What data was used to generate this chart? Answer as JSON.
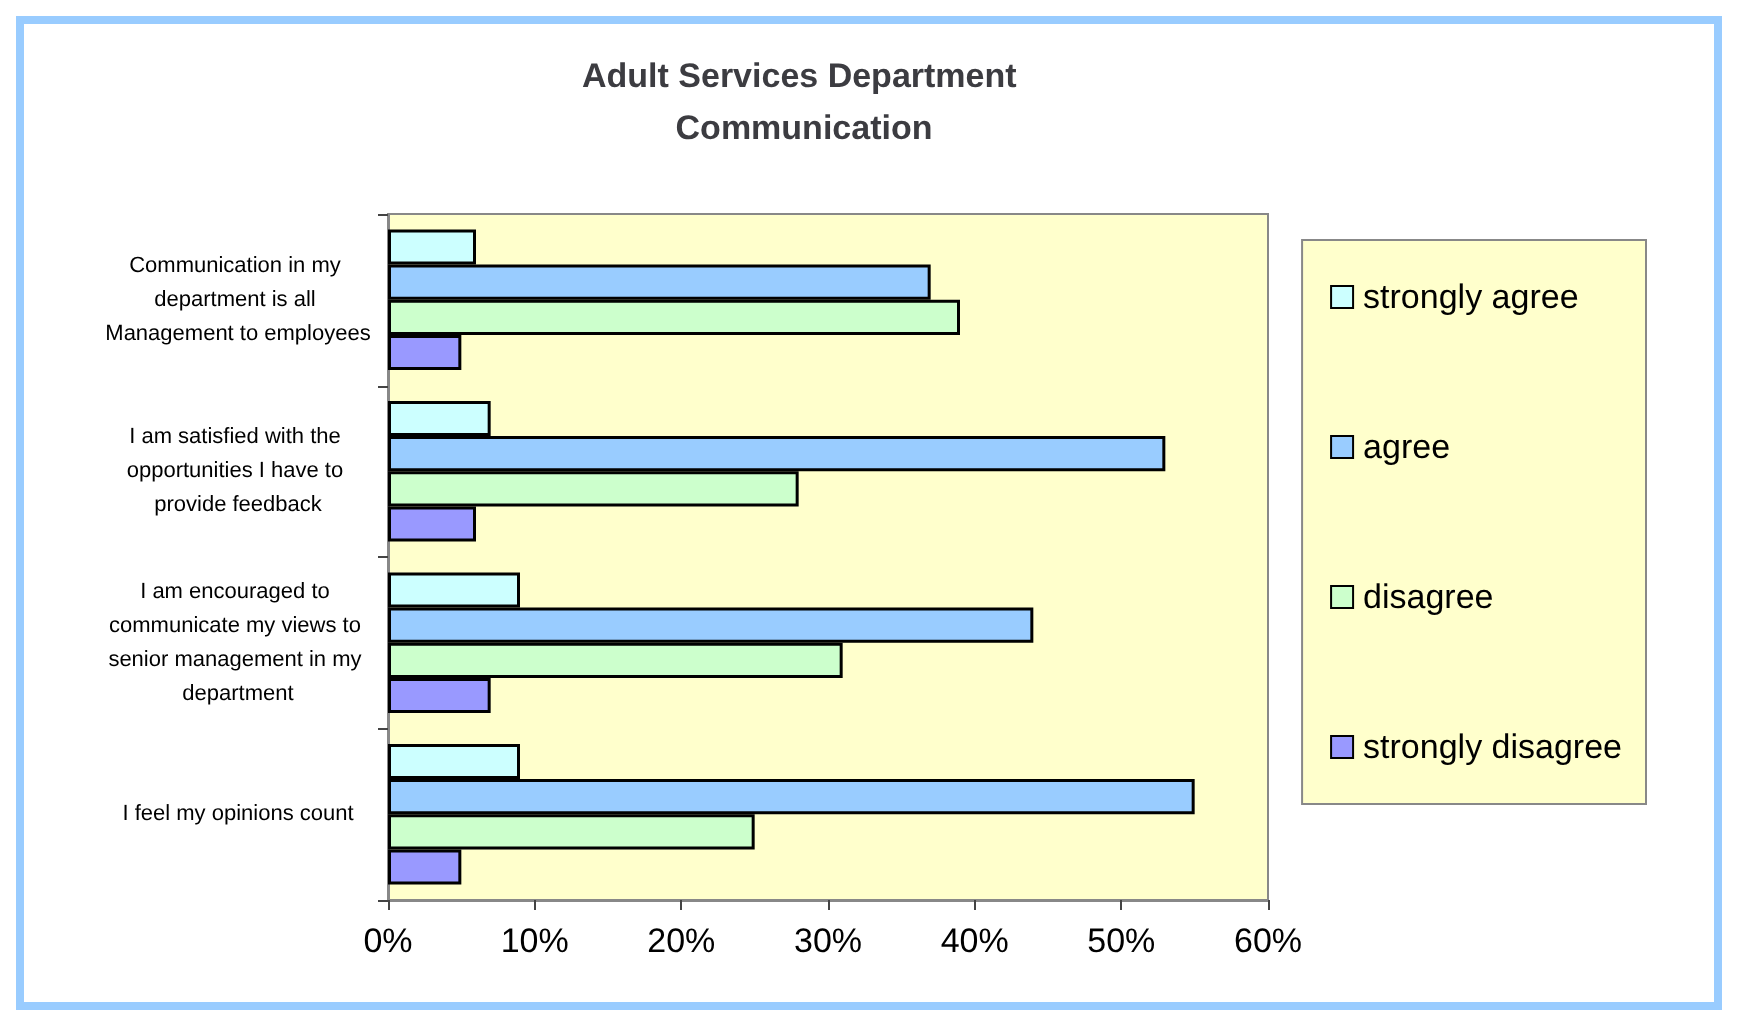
{
  "chart_data": {
    "type": "bar",
    "orientation": "horizontal",
    "title": "Adult Services Department Communication",
    "categories": [
      "Communication in my department is all Management to employees",
      "I am satisfied with the opportunities I have to provide feedback",
      "I am encouraged to communicate my views to senior management in my department",
      "I feel my opinions count"
    ],
    "series": [
      {
        "name": "strongly agree",
        "color": "#ccffff",
        "values": [
          6,
          7,
          9,
          9
        ]
      },
      {
        "name": "agree",
        "color": "#99ccff",
        "values": [
          37,
          53,
          44,
          55
        ]
      },
      {
        "name": "disagree",
        "color": "#ccffcc",
        "values": [
          39,
          28,
          31,
          25
        ]
      },
      {
        "name": "strongly disagree",
        "color": "#9999ff",
        "values": [
          5,
          6,
          7,
          5
        ]
      }
    ],
    "xlim": [
      0,
      60
    ],
    "xticks": [
      {
        "value": 0,
        "label": "0%"
      },
      {
        "value": 10,
        "label": "10%"
      },
      {
        "value": 20,
        "label": "20%"
      },
      {
        "value": 30,
        "label": "30%"
      },
      {
        "value": 40,
        "label": "40%"
      },
      {
        "value": 50,
        "label": "50%"
      },
      {
        "value": 60,
        "label": "60%"
      }
    ],
    "grid": false,
    "legend": "right"
  }
}
